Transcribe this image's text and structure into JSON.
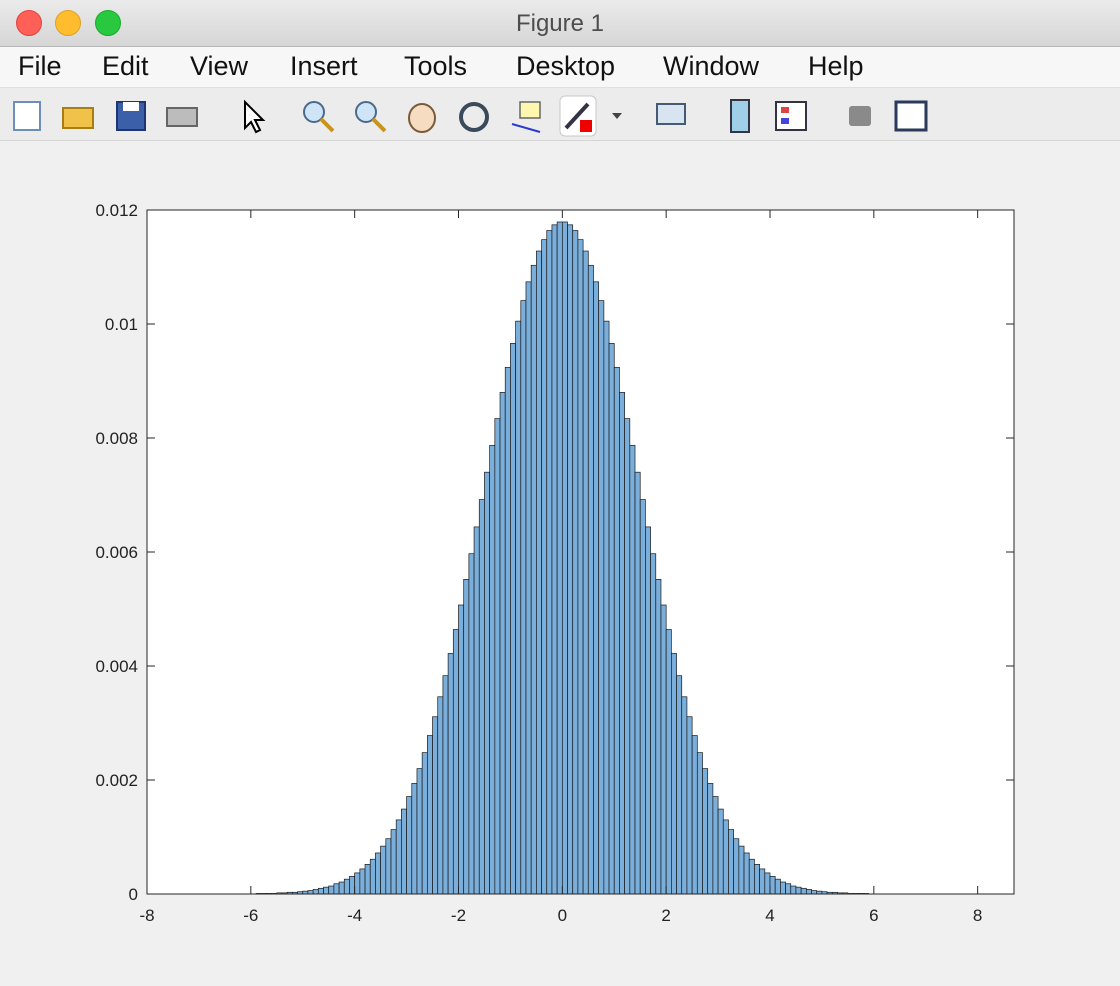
{
  "window_title": "Figure 1",
  "menu": [
    "File",
    "Edit",
    "View",
    "Insert",
    "Tools",
    "Desktop",
    "Window",
    "Help"
  ],
  "chart_data": {
    "type": "histogram",
    "bins": [
      -6,
      -5.9,
      -5.8,
      -5.7,
      -5.6,
      -5.5,
      -5.4,
      -5.3,
      -5.2,
      -5.1,
      -5,
      -4.9,
      -4.8,
      -4.7,
      -4.6,
      -4.5,
      -4.4,
      -4.3,
      -4.2,
      -4.1,
      -4,
      -3.9,
      -3.8,
      -3.7,
      -3.6,
      -3.5,
      -3.4,
      -3.3,
      -3.2,
      -3.1,
      -3,
      -2.9,
      -2.8,
      -2.7,
      -2.6,
      -2.5,
      -2.4,
      -2.3,
      -2.2,
      -2.1,
      -2,
      -1.9,
      -1.8,
      -1.7,
      -1.6,
      -1.5,
      -1.4,
      -1.3,
      -1.2,
      -1.1,
      -1,
      -0.9,
      -0.8,
      -0.7,
      -0.6,
      -0.5,
      -0.4,
      -0.3,
      -0.2,
      -0.1,
      0,
      0.1,
      0.2,
      0.3,
      0.4,
      0.5,
      0.6,
      0.7,
      0.8,
      0.9,
      1,
      1.1,
      1.2,
      1.3,
      1.4,
      1.5,
      1.6,
      1.7,
      1.8,
      1.9,
      2,
      2.1,
      2.2,
      2.3,
      2.4,
      2.5,
      2.6,
      2.7,
      2.8,
      2.9,
      3,
      3.1,
      3.2,
      3.3,
      3.4,
      3.5,
      3.6,
      3.7,
      3.8,
      3.9,
      4,
      4.1,
      4.2,
      4.3,
      4.4,
      4.5,
      4.6,
      4.7,
      4.8,
      4.9,
      5,
      5.1,
      5.2,
      5.3,
      5.4,
      5.5,
      5.6,
      5.7,
      5.8,
      5.9,
      6
    ],
    "values": [
      0,
      1e-05,
      1e-05,
      1e-05,
      1e-05,
      2e-05,
      2e-05,
      3e-05,
      3e-05,
      4e-05,
      5e-05,
      6e-05,
      8e-05,
      0.0001,
      0.00012,
      0.00014,
      0.00018,
      0.00021,
      0.00026,
      0.00031,
      0.00037,
      0.00044,
      0.00052,
      0.00061,
      0.00072,
      0.00084,
      0.00097,
      0.00113,
      0.0013,
      0.00149,
      0.00171,
      0.00194,
      0.0022,
      0.00248,
      0.00278,
      0.00311,
      0.00346,
      0.00383,
      0.00422,
      0.00464,
      0.00507,
      0.00552,
      0.00597,
      0.00644,
      0.00692,
      0.0074,
      0.00787,
      0.00834,
      0.0088,
      0.00924,
      0.00966,
      0.01005,
      0.01041,
      0.01074,
      0.01103,
      0.01128,
      0.01148,
      0.01164,
      0.01174,
      0.01179,
      0.01179,
      0.01174,
      0.01164,
      0.01148,
      0.01128,
      0.01103,
      0.01074,
      0.01041,
      0.01005,
      0.00966,
      0.00924,
      0.0088,
      0.00834,
      0.00787,
      0.0074,
      0.00692,
      0.00644,
      0.00597,
      0.00552,
      0.00507,
      0.00464,
      0.00422,
      0.00383,
      0.00346,
      0.00311,
      0.00278,
      0.00248,
      0.0022,
      0.00194,
      0.00171,
      0.00149,
      0.0013,
      0.00113,
      0.00097,
      0.00084,
      0.00072,
      0.00061,
      0.00052,
      0.00044,
      0.00037,
      0.00031,
      0.00026,
      0.00021,
      0.00018,
      0.00014,
      0.00012,
      0.0001,
      8e-05,
      6e-05,
      5e-05,
      4e-05,
      3e-05,
      3e-05,
      2e-05,
      2e-05,
      1e-05,
      1e-05,
      1e-05,
      1e-05,
      0
    ],
    "color": "#7aaedb",
    "xlim": [
      -8,
      8.7
    ],
    "xticks": [
      -8,
      -6,
      -4,
      -2,
      0,
      2,
      4,
      6,
      8
    ],
    "ylim": [
      0,
      0.012
    ],
    "yticks": [
      0,
      0.002,
      0.004,
      0.006,
      0.008,
      0.01,
      0.012
    ]
  }
}
